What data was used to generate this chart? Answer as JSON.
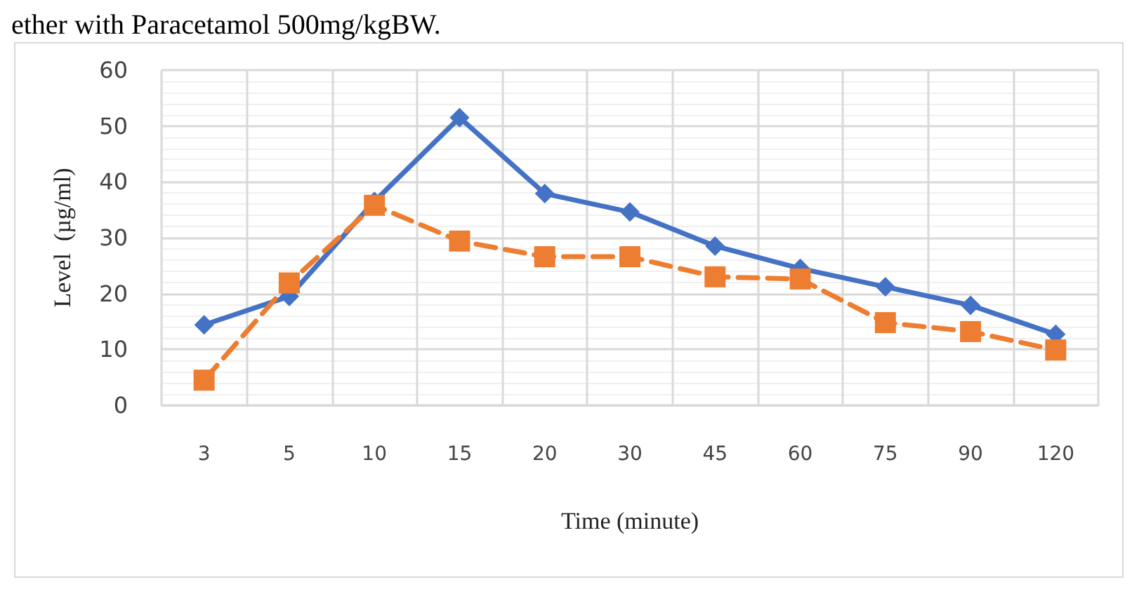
{
  "chart_data": {
    "type": "line",
    "xlabel": "Time (minute)",
    "ylabel": "Level  (µg/ml)",
    "annotations": [
      "ether with Paracetamol 500mg/kgBW."
    ],
    "categories": [
      "3",
      "5",
      "10",
      "15",
      "20",
      "30",
      "45",
      "60",
      "75",
      "90",
      "120"
    ],
    "series": [
      {
        "color": "#4472c4",
        "marker": "diamond",
        "line_style": "solid",
        "values": [
          14.4,
          19.5,
          36.5,
          51.5,
          37.9,
          34.6,
          28.5,
          24.5,
          21.2,
          17.9,
          12.7
        ]
      },
      {
        "color": "#ed7d31",
        "marker": "square",
        "line_style": "dashed",
        "values": [
          4.5,
          21.9,
          35.8,
          29.4,
          26.6,
          26.6,
          23,
          22.6,
          14.8,
          13.2,
          9.9
        ]
      }
    ],
    "ylim": [
      0,
      60
    ],
    "yticks": [
      0,
      10,
      20,
      30,
      40,
      50,
      60
    ],
    "grid": true
  }
}
